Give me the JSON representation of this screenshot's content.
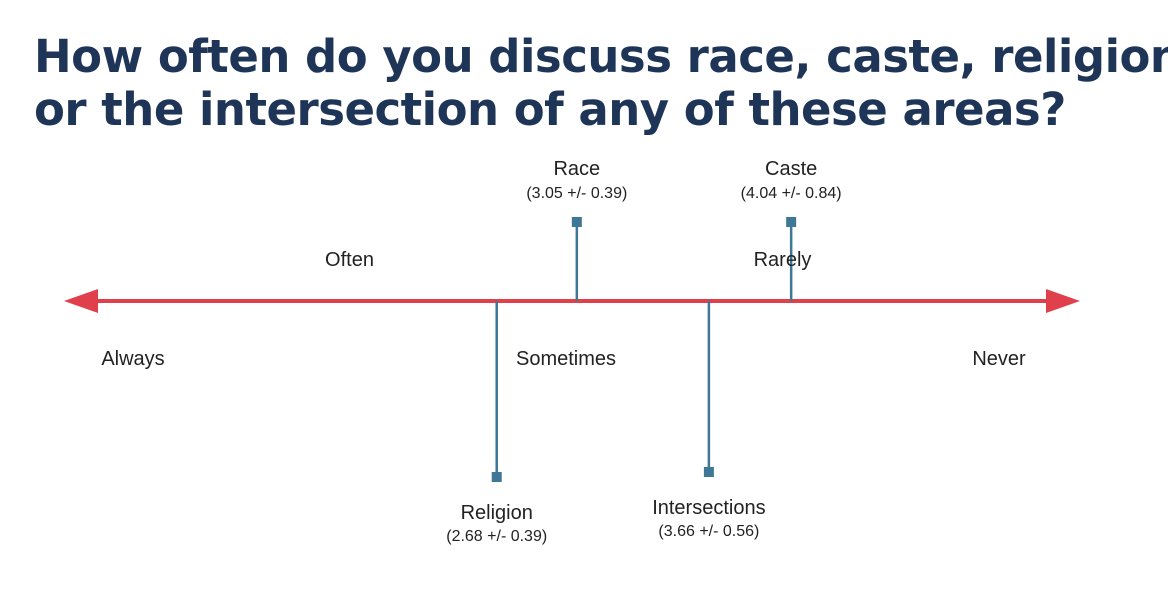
{
  "colors": {
    "title": "#1e3557",
    "axis": "#e0404b",
    "marker": "#3f7797",
    "text": "#222222"
  },
  "chart_data": {
    "type": "scatter",
    "title_lines": [
      "How often do you discuss race, caste, religion,",
      "or the intersection of any of these areas?"
    ],
    "xlim": [
      1,
      5
    ],
    "scale_labels": [
      {
        "text": "Always",
        "x": 1,
        "position": "below"
      },
      {
        "text": "Often",
        "x": 2,
        "position": "above"
      },
      {
        "text": "Sometimes",
        "x": 3,
        "position": "below"
      },
      {
        "text": "Rarely",
        "x": 4,
        "position": "above"
      },
      {
        "text": "Never",
        "x": 5,
        "position": "below"
      }
    ],
    "points": [
      {
        "name": "Race",
        "value": 3.05,
        "error": 0.39,
        "label": "(3.05 +/- 0.39)",
        "side": "above"
      },
      {
        "name": "Caste",
        "value": 4.04,
        "error": 0.84,
        "label": "(4.04 +/- 0.84)",
        "side": "above"
      },
      {
        "name": "Religion",
        "value": 2.68,
        "error": 0.39,
        "label": "(2.68 +/- 0.39)",
        "side": "below"
      },
      {
        "name": "Intersections",
        "value": 3.66,
        "error": 0.56,
        "label": "(3.66 +/- 0.56)",
        "side": "below"
      }
    ]
  }
}
